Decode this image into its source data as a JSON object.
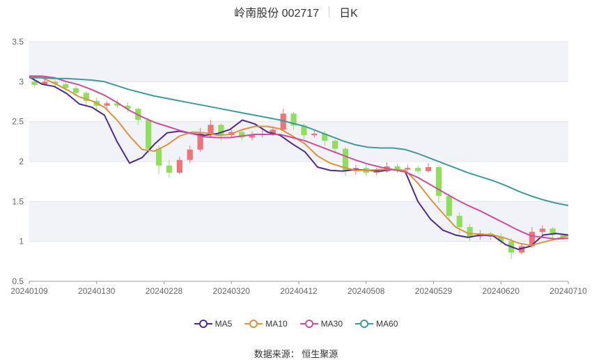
{
  "header": {
    "title": "岭南股份 002717",
    "period": "日K"
  },
  "source": "数据来源： 恒生聚源",
  "colors": {
    "up": "#f0737a",
    "down": "#8ee05a",
    "MA5": "#4b2a94",
    "MA10": "#e0913a",
    "MA30": "#cc4e9e",
    "MA60": "#3f9a9c",
    "band": "#f2f3f8",
    "grid": "#e4e4ea"
  },
  "chart_data": {
    "type": "candlestick",
    "title": "岭南股份 002717",
    "ylim": [
      0.5,
      3.5
    ],
    "yticks": [
      "3.5",
      "3",
      "2.5",
      "2",
      "1.5",
      "1",
      "0.5"
    ],
    "x_labels": [
      "20240109",
      "20240130",
      "20240228",
      "20240320",
      "20240412",
      "20240508",
      "20240529",
      "20240620",
      "20240710"
    ],
    "legend": [
      "MA5",
      "MA10",
      "MA30",
      "MA60"
    ],
    "series": [
      {
        "name": "MA5",
        "values": [
          3.06,
          2.97,
          2.94,
          2.85,
          2.72,
          2.68,
          2.58,
          2.25,
          1.98,
          2.05,
          2.22,
          2.36,
          2.38,
          2.35,
          2.33,
          2.35,
          2.4,
          2.52,
          2.47,
          2.37,
          2.33,
          2.22,
          2.12,
          1.93,
          1.89,
          1.88,
          1.9,
          1.89,
          1.88,
          1.9,
          1.87,
          1.5,
          1.28,
          1.14,
          1.08,
          1.05,
          1.08,
          1.07,
          0.96,
          0.9,
          0.94,
          1.08,
          1.1,
          1.08
        ]
      },
      {
        "name": "MA10",
        "values": [
          3.07,
          3.05,
          2.98,
          2.9,
          2.81,
          2.76,
          2.68,
          2.52,
          2.32,
          2.15,
          2.13,
          2.21,
          2.32,
          2.37,
          2.36,
          2.33,
          2.34,
          2.4,
          2.44,
          2.44,
          2.41,
          2.32,
          2.22,
          2.07,
          1.98,
          1.93,
          1.89,
          1.89,
          1.9,
          1.9,
          1.89,
          1.73,
          1.53,
          1.35,
          1.18,
          1.1,
          1.09,
          1.08,
          1.04,
          0.98,
          0.95,
          0.99,
          1.03,
          1.07
        ]
      },
      {
        "name": "MA30",
        "values": [
          3.07,
          3.07,
          3.05,
          3.0,
          2.96,
          2.9,
          2.83,
          2.74,
          2.64,
          2.56,
          2.49,
          2.44,
          2.39,
          2.35,
          2.31,
          2.3,
          2.3,
          2.32,
          2.34,
          2.34,
          2.34,
          2.3,
          2.26,
          2.2,
          2.14,
          2.08,
          2.02,
          1.97,
          1.93,
          1.9,
          1.87,
          1.8,
          1.71,
          1.62,
          1.53,
          1.45,
          1.38,
          1.3,
          1.22,
          1.14,
          1.07,
          1.05,
          1.03,
          1.04
        ]
      },
      {
        "name": "MA60",
        "values": [
          3.05,
          3.05,
          3.04,
          3.04,
          3.03,
          3.02,
          3.0,
          2.95,
          2.9,
          2.86,
          2.82,
          2.79,
          2.76,
          2.73,
          2.7,
          2.67,
          2.64,
          2.61,
          2.58,
          2.55,
          2.52,
          2.48,
          2.44,
          2.38,
          2.32,
          2.26,
          2.21,
          2.18,
          2.17,
          2.17,
          2.15,
          2.1,
          2.04,
          1.98,
          1.92,
          1.86,
          1.81,
          1.76,
          1.7,
          1.63,
          1.57,
          1.52,
          1.48,
          1.45
        ]
      }
    ],
    "candles": [
      [
        3.0,
        2.96,
        3.05,
        2.93
      ],
      [
        2.97,
        3.0,
        3.04,
        2.95
      ],
      [
        3.0,
        2.97,
        3.02,
        2.94
      ],
      [
        2.97,
        2.92,
        2.99,
        2.88
      ],
      [
        2.92,
        2.86,
        2.95,
        2.82
      ],
      [
        2.86,
        2.76,
        2.88,
        2.7
      ],
      [
        2.76,
        2.7,
        2.8,
        2.64
      ],
      [
        2.7,
        2.73,
        2.76,
        2.66
      ],
      [
        2.73,
        2.7,
        2.78,
        2.67
      ],
      [
        2.7,
        2.66,
        2.74,
        2.62
      ],
      [
        2.66,
        2.52,
        2.68,
        2.46
      ],
      [
        2.52,
        2.16,
        2.54,
        2.1
      ],
      [
        2.16,
        1.95,
        2.2,
        1.85
      ],
      [
        1.95,
        1.86,
        2.02,
        1.8
      ],
      [
        1.86,
        2.02,
        2.06,
        1.84
      ],
      [
        2.02,
        2.15,
        2.2,
        1.98
      ],
      [
        2.15,
        2.35,
        2.42,
        2.12
      ],
      [
        2.35,
        2.46,
        2.52,
        2.3
      ],
      [
        2.46,
        2.33,
        2.48,
        2.26
      ],
      [
        2.33,
        2.37,
        2.4,
        2.3
      ],
      [
        2.37,
        2.3,
        2.4,
        2.26
      ],
      [
        2.3,
        2.33,
        2.38,
        2.26
      ],
      [
        2.33,
        2.34,
        2.4,
        2.3
      ],
      [
        2.34,
        2.4,
        2.44,
        2.32
      ],
      [
        2.4,
        2.6,
        2.66,
        2.38
      ],
      [
        2.6,
        2.45,
        2.62,
        2.4
      ],
      [
        2.45,
        2.33,
        2.48,
        2.28
      ],
      [
        2.33,
        2.35,
        2.4,
        2.3
      ],
      [
        2.35,
        2.26,
        2.38,
        2.2
      ],
      [
        2.26,
        2.16,
        2.28,
        2.1
      ],
      [
        2.16,
        1.88,
        2.18,
        1.82
      ],
      [
        1.88,
        1.92,
        1.96,
        1.84
      ],
      [
        1.92,
        1.86,
        1.96,
        1.82
      ],
      [
        1.86,
        1.88,
        1.92,
        1.83
      ],
      [
        1.88,
        1.94,
        1.99,
        1.86
      ],
      [
        1.94,
        1.9,
        1.97,
        1.86
      ],
      [
        1.9,
        1.92,
        1.96,
        1.88
      ],
      [
        1.92,
        1.88,
        1.95,
        1.85
      ],
      [
        1.88,
        1.93,
        1.98,
        1.86
      ],
      [
        1.93,
        1.57,
        1.95,
        1.48
      ],
      [
        1.57,
        1.32,
        1.6,
        1.25
      ],
      [
        1.32,
        1.18,
        1.36,
        1.1
      ],
      [
        1.18,
        1.06,
        1.22,
        1.0
      ],
      [
        1.06,
        1.1,
        1.14,
        1.02
      ],
      [
        1.1,
        1.06,
        1.12,
        1.02
      ],
      [
        1.06,
        1.0,
        1.1,
        0.96
      ],
      [
        1.0,
        0.86,
        1.04,
        0.78
      ],
      [
        0.86,
        0.94,
        0.98,
        0.84
      ],
      [
        0.94,
        1.12,
        1.18,
        0.92
      ],
      [
        1.12,
        1.16,
        1.2,
        1.08
      ],
      [
        1.16,
        1.08,
        1.18,
        1.04
      ],
      [
        1.08,
        1.05,
        1.1,
        1.02
      ]
    ]
  }
}
